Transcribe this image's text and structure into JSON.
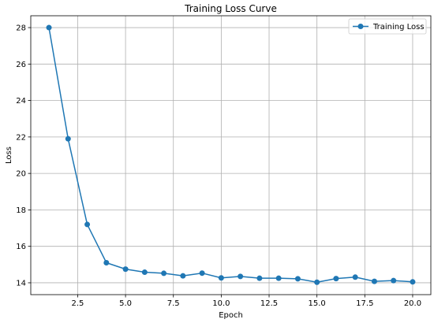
{
  "chart_data": {
    "type": "line",
    "title": "Training Loss Curve",
    "xlabel": "Epoch",
    "ylabel": "Loss",
    "xlim": [
      0.05,
      20.95
    ],
    "ylim": [
      13.35,
      28.65
    ],
    "xticks": [
      2.5,
      5.0,
      7.5,
      10.0,
      12.5,
      15.0,
      17.5,
      20.0
    ],
    "xtick_labels": [
      "2.5",
      "5.0",
      "7.5",
      "10.0",
      "12.5",
      "15.0",
      "17.5",
      "20.0"
    ],
    "yticks": [
      14,
      16,
      18,
      20,
      22,
      24,
      26,
      28
    ],
    "ytick_labels": [
      "14",
      "16",
      "18",
      "20",
      "22",
      "24",
      "26",
      "28"
    ],
    "grid": true,
    "legend_position": "top-right",
    "series": [
      {
        "name": "Training Loss",
        "color": "#1f77b4",
        "marker": "circle",
        "x": [
          1,
          2,
          3,
          4,
          5,
          6,
          7,
          8,
          9,
          10,
          11,
          12,
          13,
          14,
          15,
          16,
          17,
          18,
          19,
          20
        ],
        "y": [
          28.0,
          21.9,
          17.2,
          15.1,
          14.75,
          14.58,
          14.52,
          14.38,
          14.53,
          14.27,
          14.35,
          14.25,
          14.25,
          14.22,
          14.03,
          14.23,
          14.31,
          14.08,
          14.12,
          14.05
        ]
      }
    ]
  }
}
